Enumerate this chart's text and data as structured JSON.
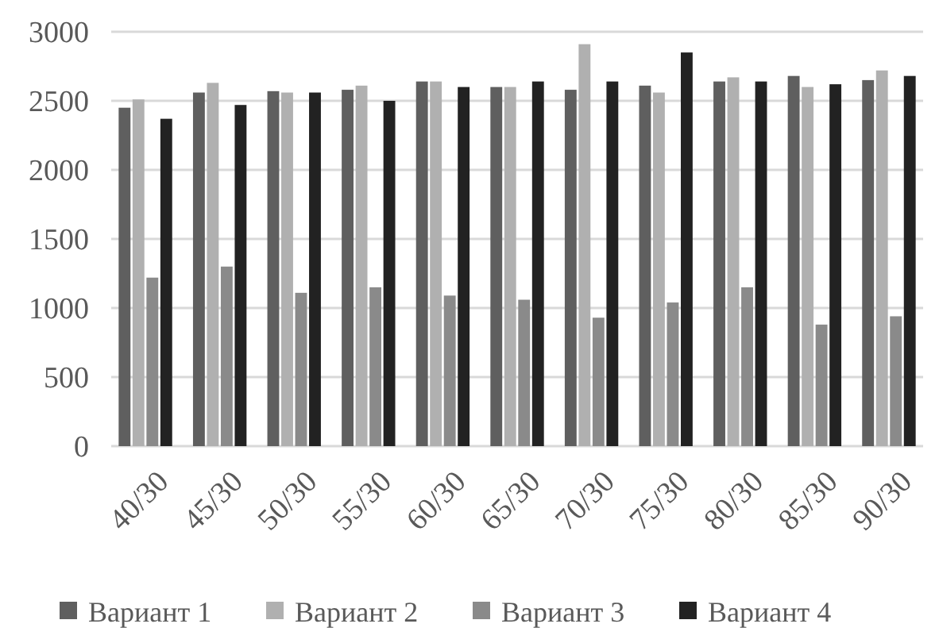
{
  "chart_data": {
    "type": "bar",
    "categories": [
      "40/30",
      "45/30",
      "50/30",
      "55/30",
      "60/30",
      "65/30",
      "70/30",
      "75/30",
      "80/30",
      "85/30",
      "90/30"
    ],
    "series": [
      {
        "name": "Вариант 1",
        "color": "#5f5f5f",
        "values": [
          2450,
          2560,
          2570,
          2580,
          2640,
          2600,
          2580,
          2610,
          2640,
          2680,
          2650
        ]
      },
      {
        "name": "Вариант 2",
        "color": "#b0b0b0",
        "values": [
          2510,
          2630,
          2560,
          2610,
          2640,
          2600,
          2910,
          2560,
          2670,
          2600,
          2720
        ]
      },
      {
        "name": "Вариант 3",
        "color": "#8a8a8a",
        "values": [
          1220,
          1300,
          1110,
          1150,
          1090,
          1060,
          930,
          1040,
          1150,
          880,
          940
        ]
      },
      {
        "name": "Вариант 4",
        "color": "#222222",
        "values": [
          2370,
          2470,
          2560,
          2500,
          2600,
          2640,
          2640,
          2850,
          2640,
          2620,
          2680
        ]
      }
    ],
    "ylim": [
      0,
      3000
    ],
    "yticks": [
      0,
      500,
      1000,
      1500,
      2000,
      2500,
      3000
    ],
    "grid": "y",
    "legend": "bottom"
  }
}
